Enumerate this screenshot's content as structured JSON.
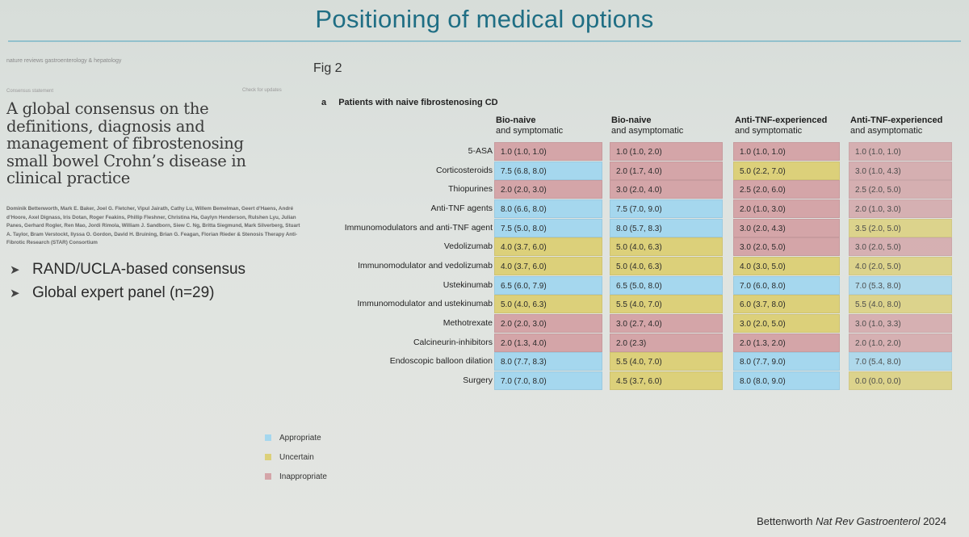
{
  "slide": {
    "title": "Positioning of medical options"
  },
  "article": {
    "journal": "nature reviews gastroenterology & hepatology",
    "section": "Consensus statement",
    "check_updates": "Check for updates",
    "title": "A global consensus on the definitions, diagnosis and management of fibrostenosing small bowel Crohn’s disease in clinical practice",
    "authors": "Dominik Bettenworth, Mark E. Baker, Joel G. Fletcher, Vipul Jairath, Cathy Lu, Willem Bemelman, Geert d’Haens, André d’Hoore, Axel Dignass, Iris Dotan, Roger Feakins, Phillip Fleshner, Christina Ha, Gaylyn Henderson, Rulshen Lyu, Julian Panes, Gerhard Rogler, Ren Mao, Jordi Rimola, William J. Sandborn, Siew C. Ng, Britta Siegmund, Mark Silverberg, Stuart A. Taylor, Bram Verstockt, Ilyssa O. Gordon, David H. Bruining, Brian G. Feagan, Florian Rieder & Stenosis Therapy Anti-Fibrotic Research (STAR) Consortium"
  },
  "bullets": [
    "RAND/UCLA-based consensus",
    "Global expert panel (n=29)"
  ],
  "figure": {
    "label": "Fig 2",
    "panel_letter": "a",
    "panel_title": "Patients with naive fibrostenosing CD",
    "columns": [
      {
        "line1": "Bio-naive",
        "line2": "and symptomatic"
      },
      {
        "line1": "Bio-naive",
        "line2": "and asymptomatic"
      },
      {
        "line1": "Anti-TNF-experienced",
        "line2": "and symptomatic"
      },
      {
        "line1": "Anti-TNF-experienced",
        "line2": "and asymptomatic"
      }
    ],
    "rows": [
      {
        "label": "5-ASA",
        "cells": [
          {
            "text": "1.0 (1.0, 1.0)",
            "cat": "inappropriate"
          },
          {
            "text": "1.0 (1.0, 2.0)",
            "cat": "inappropriate"
          },
          {
            "text": "1.0 (1.0, 1.0)",
            "cat": "inappropriate"
          },
          {
            "text": "1.0 (1.0, 1.0)",
            "cat": "inappropriate"
          }
        ]
      },
      {
        "label": "Corticosteroids",
        "cells": [
          {
            "text": "7.5 (6.8, 8.0)",
            "cat": "appropriate"
          },
          {
            "text": "2.0 (1.7, 4.0)",
            "cat": "inappropriate"
          },
          {
            "text": "5.0 (2.2, 7.0)",
            "cat": "uncertain"
          },
          {
            "text": "3.0 (1.0, 4.3)",
            "cat": "inappropriate"
          }
        ]
      },
      {
        "label": "Thiopurines",
        "cells": [
          {
            "text": "2.0 (2.0, 3.0)",
            "cat": "inappropriate"
          },
          {
            "text": "3.0 (2.0, 4.0)",
            "cat": "inappropriate"
          },
          {
            "text": "2.5 (2.0, 6.0)",
            "cat": "inappropriate"
          },
          {
            "text": "2.5 (2.0, 5.0)",
            "cat": "inappropriate"
          }
        ]
      },
      {
        "label": "Anti-TNF agents",
        "cells": [
          {
            "text": "8.0 (6.6, 8.0)",
            "cat": "appropriate"
          },
          {
            "text": "7.5 (7.0, 9.0)",
            "cat": "appropriate"
          },
          {
            "text": "2.0 (1.0, 3.0)",
            "cat": "inappropriate"
          },
          {
            "text": "2.0 (1.0, 3.0)",
            "cat": "inappropriate"
          }
        ]
      },
      {
        "label": "Immunomodulators and anti-TNF agent",
        "cells": [
          {
            "text": "7.5 (5.0, 8.0)",
            "cat": "appropriate"
          },
          {
            "text": "8.0 (5.7, 8.3)",
            "cat": "appropriate"
          },
          {
            "text": "3.0 (2.0, 4.3)",
            "cat": "inappropriate"
          },
          {
            "text": "3.5 (2.0, 5.0)",
            "cat": "uncertain"
          }
        ]
      },
      {
        "label": "Vedolizumab",
        "cells": [
          {
            "text": "4.0 (3.7, 6.0)",
            "cat": "uncertain"
          },
          {
            "text": "5.0 (4.0, 6.3)",
            "cat": "uncertain"
          },
          {
            "text": "3.0 (2.0, 5.0)",
            "cat": "inappropriate"
          },
          {
            "text": "3.0 (2.0, 5.0)",
            "cat": "inappropriate"
          }
        ]
      },
      {
        "label": "Immunomodulator and vedolizumab",
        "cells": [
          {
            "text": "4.0 (3.7, 6.0)",
            "cat": "uncertain"
          },
          {
            "text": "5.0 (4.0, 6.3)",
            "cat": "uncertain"
          },
          {
            "text": "4.0 (3.0, 5.0)",
            "cat": "uncertain"
          },
          {
            "text": "4.0 (2.0, 5.0)",
            "cat": "uncertain"
          }
        ]
      },
      {
        "label": "Ustekinumab",
        "cells": [
          {
            "text": "6.5 (6.0, 7.9)",
            "cat": "appropriate"
          },
          {
            "text": "6.5 (5.0, 8.0)",
            "cat": "appropriate"
          },
          {
            "text": "7.0 (6.0, 8.0)",
            "cat": "appropriate"
          },
          {
            "text": "7.0 (5.3, 8.0)",
            "cat": "appropriate"
          }
        ]
      },
      {
        "label": "Immunomodulator and ustekinumab",
        "cells": [
          {
            "text": "5.0 (4.0, 6.3)",
            "cat": "uncertain"
          },
          {
            "text": "5.5 (4.0, 7.0)",
            "cat": "uncertain"
          },
          {
            "text": "6.0 (3.7, 8.0)",
            "cat": "uncertain"
          },
          {
            "text": "5.5 (4.0, 8.0)",
            "cat": "uncertain"
          }
        ]
      },
      {
        "label": "Methotrexate",
        "cells": [
          {
            "text": "2.0 (2.0, 3.0)",
            "cat": "inappropriate"
          },
          {
            "text": "3.0 (2.7, 4.0)",
            "cat": "inappropriate"
          },
          {
            "text": "3.0 (2.0, 5.0)",
            "cat": "uncertain"
          },
          {
            "text": "3.0 (1.0, 3.3)",
            "cat": "inappropriate"
          }
        ]
      },
      {
        "label": "Calcineurin-inhibitors",
        "cells": [
          {
            "text": "2.0 (1.3, 4.0)",
            "cat": "inappropriate"
          },
          {
            "text": "2.0 (2.3)",
            "cat": "inappropriate"
          },
          {
            "text": "2.0 (1.3, 2.0)",
            "cat": "inappropriate"
          },
          {
            "text": "2.0 (1.0, 2.0)",
            "cat": "inappropriate"
          }
        ]
      },
      {
        "label": "Endoscopic balloon dilation",
        "cells": [
          {
            "text": "8.0 (7.7, 8.3)",
            "cat": "appropriate"
          },
          {
            "text": "5.5 (4.0, 7.0)",
            "cat": "uncertain"
          },
          {
            "text": "8.0 (7.7, 9.0)",
            "cat": "appropriate"
          },
          {
            "text": "7.0 (5.4, 8.0)",
            "cat": "appropriate"
          }
        ]
      },
      {
        "label": "Surgery",
        "cells": [
          {
            "text": "7.0 (7.0, 8.0)",
            "cat": "appropriate"
          },
          {
            "text": "4.5 (3.7, 6.0)",
            "cat": "uncertain"
          },
          {
            "text": "8.0 (8.0, 9.0)",
            "cat": "appropriate"
          },
          {
            "text": "0.0 (0.0, 0.0)",
            "cat": "uncertain"
          }
        ]
      }
    ],
    "legend": [
      {
        "label": "Appropriate",
        "color": "#a5d7ee"
      },
      {
        "label": "Uncertain",
        "color": "#dcd07a"
      },
      {
        "label": "Inappropriate",
        "color": "#d4a5a8"
      }
    ]
  },
  "citation": {
    "author": "Bettenworth",
    "journal": "Nat Rev Gastroenterol",
    "year": "2024"
  }
}
